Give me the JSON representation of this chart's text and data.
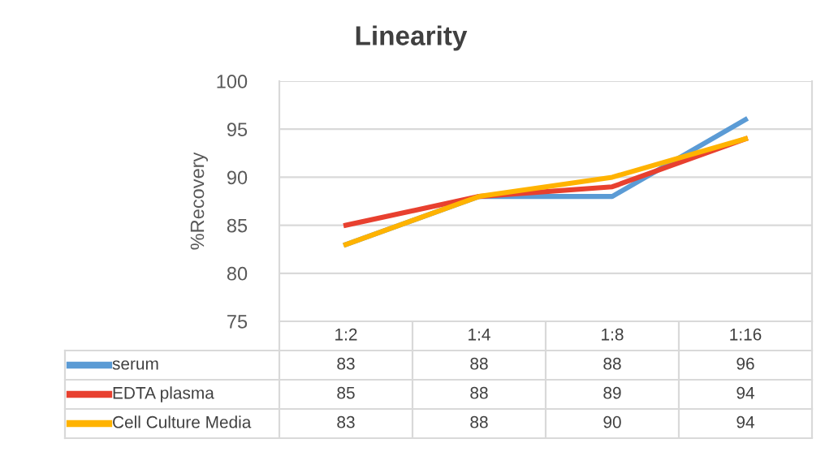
{
  "chart_data": {
    "type": "line",
    "title": "Linearity",
    "ylabel": "%Recovery",
    "categories": [
      "1:2",
      "1:4",
      "1:8",
      "1:16"
    ],
    "series": [
      {
        "name": "serum",
        "color": "#5b9bd5",
        "values": [
          83,
          88,
          88,
          96
        ]
      },
      {
        "name": "EDTA plasma",
        "color": "#e8402f",
        "values": [
          85,
          88,
          89,
          94
        ]
      },
      {
        "name": "Cell Culture Media",
        "color": "#ffb300",
        "values": [
          83,
          88,
          90,
          94
        ]
      }
    ],
    "ylim": [
      75,
      100
    ],
    "yticks": [
      75,
      80,
      85,
      90,
      95,
      100
    ],
    "grid": "y",
    "legend": "bottom",
    "data_labels": true,
    "marker": "none",
    "line_style": "solid"
  }
}
